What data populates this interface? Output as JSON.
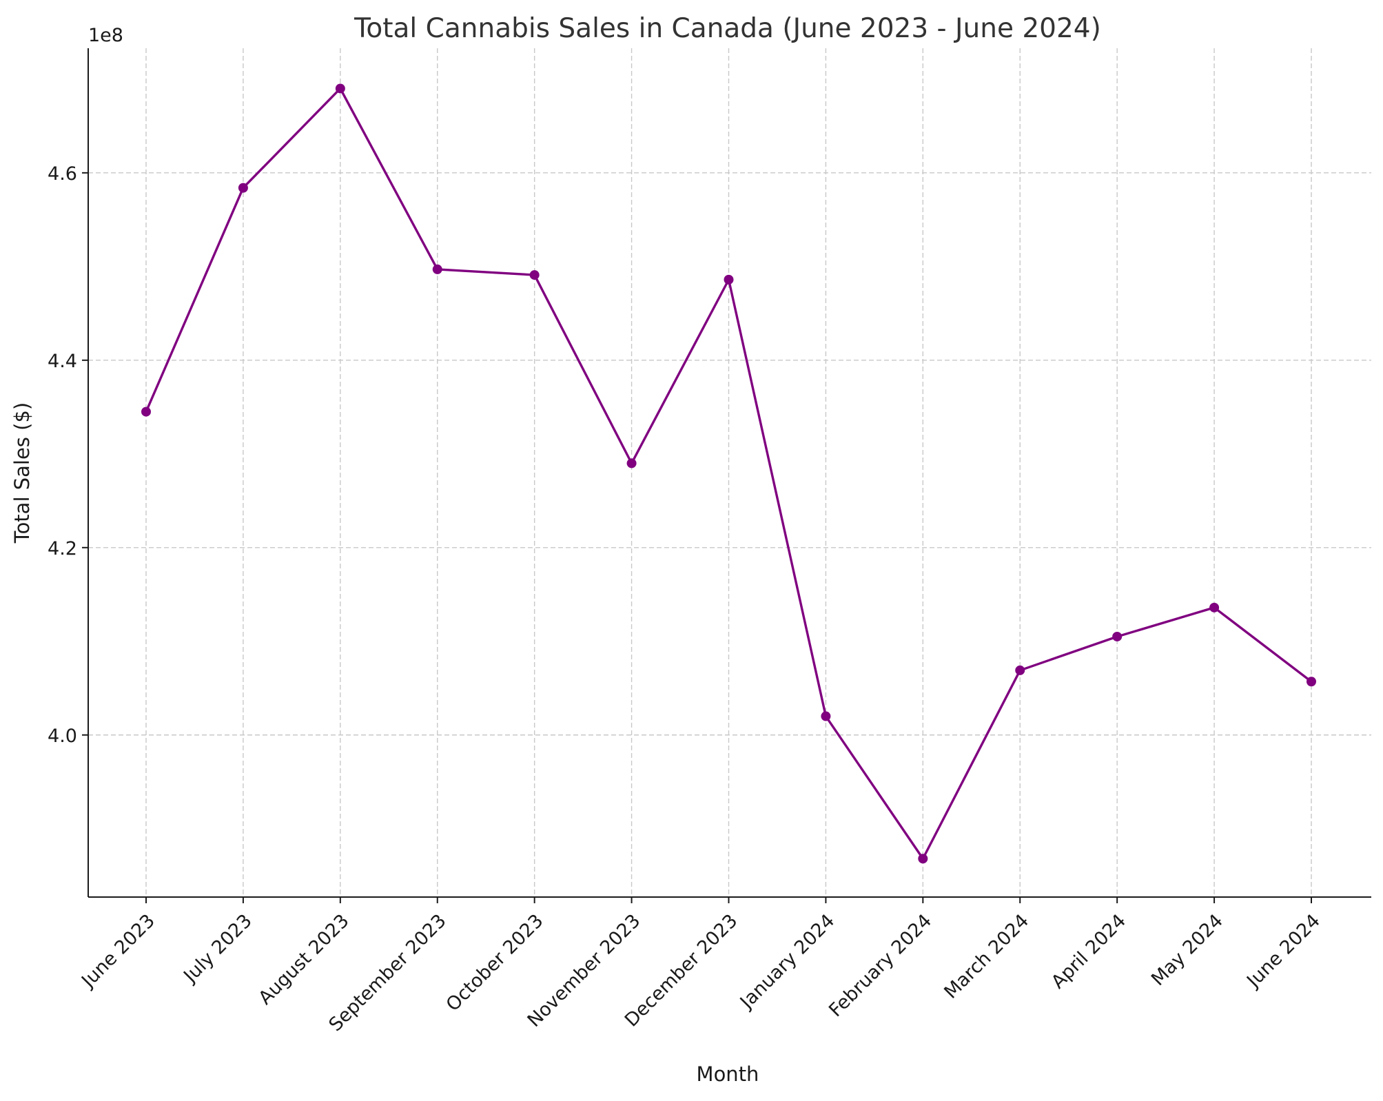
{
  "chart_data": {
    "type": "line",
    "title": "Total Cannabis Sales in Canada (June 2023 - June 2024)",
    "xlabel": "Month",
    "ylabel": "Total Sales ($)",
    "y_offset_label": "1e8",
    "y_scale_factor": 100000000,
    "categories": [
      "June 2023",
      "July 2023",
      "August 2023",
      "September 2023",
      "October 2023",
      "November 2023",
      "December 2023",
      "January 2024",
      "February 2024",
      "March 2024",
      "April 2024",
      "May 2024",
      "June 2024"
    ],
    "series": [
      {
        "values": [
          434500000,
          458400000,
          469000000,
          449700000,
          449100000,
          429000000,
          448600000,
          402000000,
          386800000,
          406900000,
          410500000,
          413600000,
          405700000
        ],
        "color": "#800080"
      }
    ],
    "yticks": [
      4.0,
      4.2,
      4.4,
      4.6
    ],
    "ytick_labels": [
      "4.0",
      "4.2",
      "4.4",
      "4.6"
    ],
    "ylim": [
      3.827,
      4.733
    ],
    "grid": true,
    "legend": "none"
  }
}
